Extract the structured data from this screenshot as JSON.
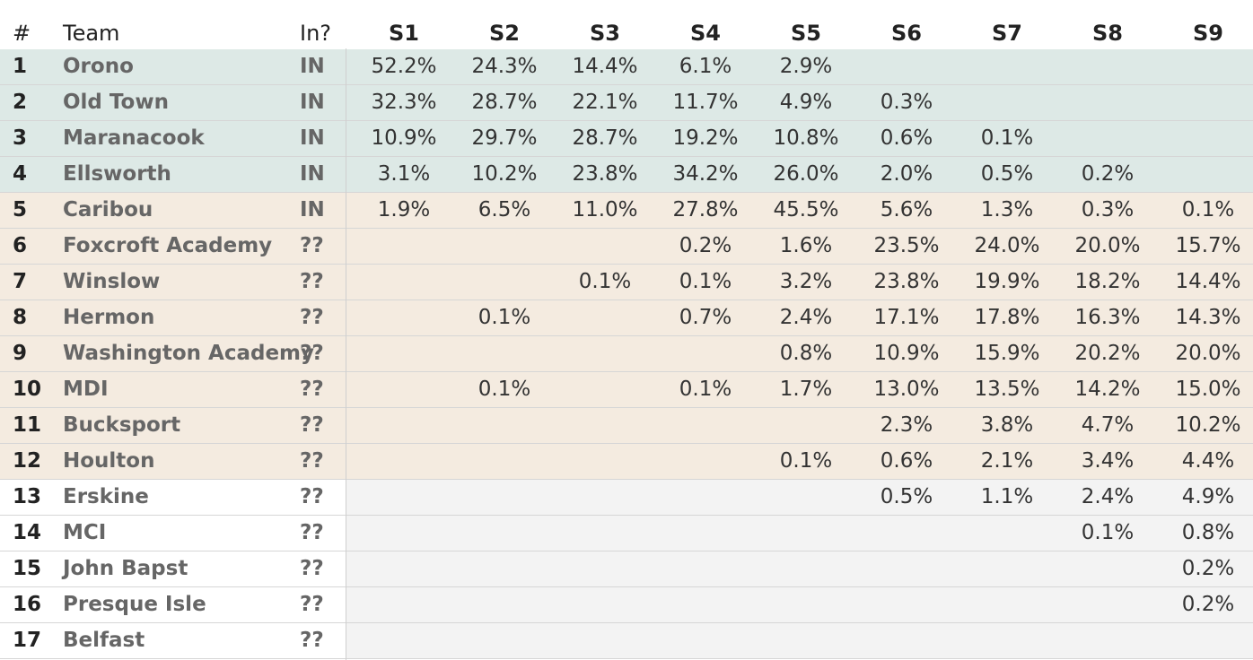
{
  "table": {
    "headers": {
      "num": "#",
      "team": "Team",
      "in": "In?",
      "seeds": [
        "S1",
        "S2",
        "S3",
        "S4",
        "S5",
        "S6",
        "S7",
        "S8",
        "S9"
      ]
    },
    "zone_colors": {
      "in_zone": "#dde9e6",
      "bubble_zone": "#f4ebe0",
      "out_zone": "#f3f3f3"
    }
  },
  "chart_data": {
    "type": "table",
    "columns": [
      "#",
      "Team",
      "In?",
      "S1",
      "S2",
      "S3",
      "S4",
      "S5",
      "S6",
      "S7",
      "S8",
      "S9"
    ],
    "rows": [
      {
        "seed": "1",
        "team": "Orono",
        "in": "IN",
        "zone": "in_zone",
        "values": [
          "52.2%",
          "24.3%",
          "14.4%",
          "6.1%",
          "2.9%",
          "",
          "",
          "",
          ""
        ]
      },
      {
        "seed": "2",
        "team": "Old Town",
        "in": "IN",
        "zone": "in_zone",
        "values": [
          "32.3%",
          "28.7%",
          "22.1%",
          "11.7%",
          "4.9%",
          "0.3%",
          "",
          "",
          ""
        ]
      },
      {
        "seed": "3",
        "team": "Maranacook",
        "in": "IN",
        "zone": "in_zone",
        "values": [
          "10.9%",
          "29.7%",
          "28.7%",
          "19.2%",
          "10.8%",
          "0.6%",
          "0.1%",
          "",
          ""
        ]
      },
      {
        "seed": "4",
        "team": "Ellsworth",
        "in": "IN",
        "zone": "in_zone",
        "values": [
          "3.1%",
          "10.2%",
          "23.8%",
          "34.2%",
          "26.0%",
          "2.0%",
          "0.5%",
          "0.2%",
          ""
        ]
      },
      {
        "seed": "5",
        "team": "Caribou",
        "in": "IN",
        "zone": "bubble_zone",
        "values": [
          "1.9%",
          "6.5%",
          "11.0%",
          "27.8%",
          "45.5%",
          "5.6%",
          "1.3%",
          "0.3%",
          "0.1%"
        ]
      },
      {
        "seed": "6",
        "team": "Foxcroft Academy",
        "in": "??",
        "zone": "bubble_zone",
        "values": [
          "",
          "",
          "",
          "0.2%",
          "1.6%",
          "23.5%",
          "24.0%",
          "20.0%",
          "15.7%"
        ]
      },
      {
        "seed": "7",
        "team": "Winslow",
        "in": "??",
        "zone": "bubble_zone",
        "values": [
          "",
          "",
          "0.1%",
          "0.1%",
          "3.2%",
          "23.8%",
          "19.9%",
          "18.2%",
          "14.4%"
        ]
      },
      {
        "seed": "8",
        "team": "Hermon",
        "in": "??",
        "zone": "bubble_zone",
        "values": [
          "",
          "0.1%",
          "",
          "0.7%",
          "2.4%",
          "17.1%",
          "17.8%",
          "16.3%",
          "14.3%"
        ]
      },
      {
        "seed": "9",
        "team": "Washington Academy",
        "in": "??",
        "zone": "bubble_zone",
        "values": [
          "",
          "",
          "",
          "",
          "0.8%",
          "10.9%",
          "15.9%",
          "20.2%",
          "20.0%"
        ]
      },
      {
        "seed": "10",
        "team": "MDI",
        "in": "??",
        "zone": "bubble_zone",
        "values": [
          "",
          "0.1%",
          "",
          "0.1%",
          "1.7%",
          "13.0%",
          "13.5%",
          "14.2%",
          "15.0%"
        ]
      },
      {
        "seed": "11",
        "team": "Bucksport",
        "in": "??",
        "zone": "bubble_zone",
        "values": [
          "",
          "",
          "",
          "",
          "",
          "2.3%",
          "3.8%",
          "4.7%",
          "10.2%"
        ]
      },
      {
        "seed": "12",
        "team": "Houlton",
        "in": "??",
        "zone": "bubble_zone",
        "values": [
          "",
          "",
          "",
          "",
          "0.1%",
          "0.6%",
          "2.1%",
          "3.4%",
          "4.4%"
        ]
      },
      {
        "seed": "13",
        "team": "Erskine",
        "in": "??",
        "zone": "out_zone",
        "values": [
          "",
          "",
          "",
          "",
          "",
          "0.5%",
          "1.1%",
          "2.4%",
          "4.9%"
        ]
      },
      {
        "seed": "14",
        "team": "MCI",
        "in": "??",
        "zone": "out_zone",
        "values": [
          "",
          "",
          "",
          "",
          "",
          "",
          "",
          "0.1%",
          "0.8%"
        ]
      },
      {
        "seed": "15",
        "team": "John Bapst",
        "in": "??",
        "zone": "out_zone",
        "values": [
          "",
          "",
          "",
          "",
          "",
          "",
          "",
          "",
          "0.2%"
        ]
      },
      {
        "seed": "16",
        "team": "Presque Isle",
        "in": "??",
        "zone": "out_zone",
        "values": [
          "",
          "",
          "",
          "",
          "",
          "",
          "",
          "",
          "0.2%"
        ]
      },
      {
        "seed": "17",
        "team": "Belfast",
        "in": "??",
        "zone": "out_zone",
        "values": [
          "",
          "",
          "",
          "",
          "",
          "",
          "",
          "",
          ""
        ]
      }
    ]
  }
}
